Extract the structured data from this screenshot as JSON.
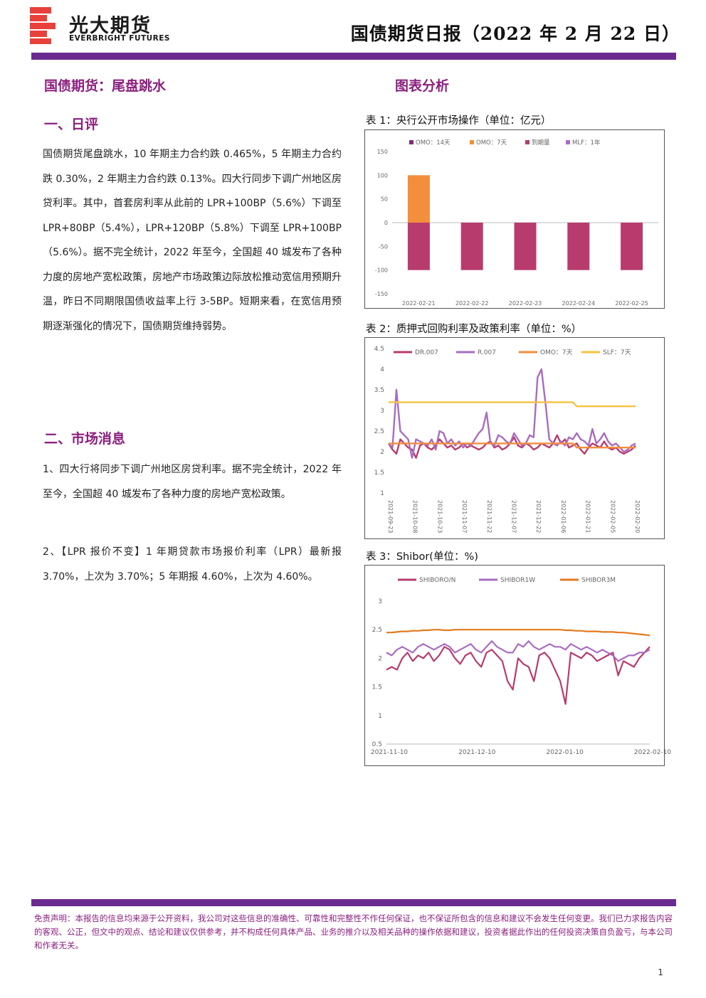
{
  "header": {
    "logo_cn": "光大期货",
    "logo_en": "EVERBRIGHT FUTURES",
    "report_title": "国债期货日报（2022 年 2 月 22 日）"
  },
  "main": {
    "title": "国债期货：尾盘跳水",
    "section1_title": "一、日评",
    "section1_text": "国债期货尾盘跳水，10 年期主力合约跌 0.465%，5 年期主力合约跌 0.30%，2 年期主力合约跌 0.13%。四大行同步下调广州地区房贷利率。其中，首套房利率从此前的 LPR+100BP（5.6%）下调至 LPR+80BP（5.4%），LPR+120BP（5.8%）下调至 LPR+100BP（5.6%）。据不完全统计，2022 年至今，全国超 40 城发布了各种力度的房地产宽松政策，房地产市场政策边际放松推动宽信用预期升温，昨日不同期限国债收益率上行 3-5BP。短期来看，在宽信用预期逐渐强化的情况下，国债期货维持弱势。",
    "section2_title": "二、市场消息",
    "news1": "1、四大行将同步下调广州地区房贷利率。据不完全统计，2022 年至今，全国超 40 城发布了各种力度的房地产宽松政策。",
    "news2": "2、【LPR 报价不变】1 年期贷款市场报价利率（LPR）最新报 3.70%，上次为 3.70%；5 年期报 4.60%，上次为 4.60%。"
  },
  "charts_title": "图表分析",
  "chart_data": [
    {
      "label": "表 1：央行公开市场操作（单位：亿元）",
      "type": "bar",
      "categories": [
        "2022-02-21",
        "2022-02-22",
        "2022-02-23",
        "2022-02-24",
        "2022-02-25"
      ],
      "series": [
        {
          "name": "OMO：14天",
          "color": "#7b2d7e",
          "values": [
            0,
            0,
            0,
            0,
            0
          ]
        },
        {
          "name": "OMO：7天",
          "color": "#f28e3c",
          "values": [
            100,
            0,
            0,
            0,
            0
          ]
        },
        {
          "name": "到期量",
          "color": "#b83b6e",
          "values": [
            -100,
            -100,
            -100,
            -100,
            -100
          ]
        },
        {
          "name": "MLF：1年",
          "color": "#a86cc1",
          "values": [
            0,
            0,
            0,
            0,
            0
          ]
        }
      ],
      "ylim": [
        -150,
        150
      ],
      "yticks": [
        "150",
        "100",
        "50",
        "0",
        "-50",
        "-100",
        "-150"
      ]
    },
    {
      "label": "表 2：质押式回购利率及政策利率（单位：%）",
      "type": "line",
      "xticks": [
        "2021-09-23",
        "2021-10-08",
        "2021-10-23",
        "2021-11-07",
        "2021-11-22",
        "2021-12-07",
        "2021-12-22",
        "2022-01-06",
        "2022-01-21",
        "2022-02-05",
        "2022-02-20"
      ],
      "yticks": [
        "4.5",
        "4",
        "3.5",
        "3",
        "2.5",
        "2",
        "1.5",
        "1"
      ],
      "ylim": [
        1,
        4.5
      ],
      "series": [
        {
          "name": "DR.007",
          "color": "#b83b6e",
          "values": [
            2.2,
            2.05,
            1.95,
            2.3,
            2.2,
            2.1,
            2.05,
            1.85,
            2.15,
            2.2,
            2.1,
            2.05,
            2.15,
            2.3,
            2.2,
            2.1,
            2.15,
            2.05,
            2.1,
            2.2,
            2.1,
            2.15,
            2.1,
            2.05,
            2.1,
            2.2,
            2.25,
            2.1,
            2.15,
            2.05,
            2.1,
            2.2,
            2.35,
            2.15,
            2.1,
            2.2,
            2.15,
            2.05,
            2.1,
            2.2,
            2.15,
            2.1,
            2.2,
            2.4,
            2.2,
            2.3,
            2.1,
            2.15,
            2.2,
            2.05,
            1.95,
            2.1,
            2.2,
            2.15,
            2.1,
            2.25,
            2.1,
            2.05,
            2.1,
            2.0,
            1.95,
            2.0,
            2.05,
            2.15
          ]
        },
        {
          "name": "R.007",
          "color": "#a86cc1",
          "values": [
            2.2,
            2.1,
            3.5,
            2.5,
            2.4,
            2.3,
            1.85,
            2.3,
            2.25,
            2.2,
            2.15,
            2.3,
            2.05,
            2.5,
            2.45,
            2.2,
            2.3,
            2.15,
            2.25,
            2.1,
            2.2,
            2.15,
            2.3,
            2.45,
            2.55,
            2.95,
            2.2,
            2.15,
            2.4,
            2.35,
            2.25,
            2.2,
            2.45,
            2.3,
            2.15,
            2.2,
            2.4,
            2.35,
            3.8,
            4.0,
            3.2,
            2.3,
            2.2,
            2.15,
            2.25,
            2.15,
            2.35,
            2.3,
            2.45,
            2.3,
            2.25,
            2.15,
            2.55,
            2.2,
            2.3,
            2.45,
            2.25,
            2.15,
            2.2,
            2.1,
            2.0,
            2.05,
            2.15,
            2.2
          ]
        },
        {
          "name": "OMO：7天",
          "color": "#f28e3c",
          "values": [
            2.2,
            2.2,
            2.2,
            2.2,
            2.2,
            2.2,
            2.2,
            2.2,
            2.2,
            2.2,
            2.2,
            2.2,
            2.2,
            2.2,
            2.2,
            2.2,
            2.2,
            2.2,
            2.2,
            2.2,
            2.2,
            2.2,
            2.2,
            2.2,
            2.2,
            2.2,
            2.2,
            2.2,
            2.2,
            2.2,
            2.2,
            2.2,
            2.2,
            2.2,
            2.2,
            2.2,
            2.2,
            2.2,
            2.2,
            2.2,
            2.2,
            2.2,
            2.2,
            2.2,
            2.2,
            2.2,
            2.2,
            2.2,
            2.1,
            2.1,
            2.1,
            2.1,
            2.1,
            2.1,
            2.1,
            2.1,
            2.1,
            2.1,
            2.1,
            2.1,
            2.1,
            2.1,
            2.1,
            2.1
          ]
        },
        {
          "name": "SLF：7天",
          "color": "#f5c242",
          "values": [
            3.2,
            3.2,
            3.2,
            3.2,
            3.2,
            3.2,
            3.2,
            3.2,
            3.2,
            3.2,
            3.2,
            3.2,
            3.2,
            3.2,
            3.2,
            3.2,
            3.2,
            3.2,
            3.2,
            3.2,
            3.2,
            3.2,
            3.2,
            3.2,
            3.2,
            3.2,
            3.2,
            3.2,
            3.2,
            3.2,
            3.2,
            3.2,
            3.2,
            3.2,
            3.2,
            3.2,
            3.2,
            3.2,
            3.2,
            3.2,
            3.2,
            3.2,
            3.2,
            3.2,
            3.2,
            3.2,
            3.2,
            3.2,
            3.1,
            3.1,
            3.1,
            3.1,
            3.1,
            3.1,
            3.1,
            3.1,
            3.1,
            3.1,
            3.1,
            3.1,
            3.1,
            3.1,
            3.1,
            3.1
          ]
        }
      ]
    },
    {
      "label": "表 3：Shibor(单位：%)",
      "type": "line",
      "xticks": [
        "2021-11-10",
        "2021-12-10",
        "2022-01-10",
        "2022-02-10"
      ],
      "yticks": [
        "3",
        "2.5",
        "2",
        "1.5",
        "1",
        "0.5"
      ],
      "ylim": [
        0.5,
        3
      ],
      "series": [
        {
          "name": "SHIBORO/N",
          "color": "#b83b6e",
          "values": [
            1.8,
            1.85,
            1.8,
            2.0,
            2.1,
            1.95,
            2.05,
            2.0,
            2.1,
            1.95,
            2.05,
            2.2,
            2.15,
            2.0,
            1.9,
            2.05,
            2.1,
            1.95,
            1.85,
            2.1,
            2.15,
            2.05,
            1.95,
            1.6,
            1.45,
            2.0,
            1.9,
            1.85,
            1.6,
            2.05,
            2.1,
            2.0,
            1.8,
            1.6,
            1.2,
            2.1,
            2.05,
            2.0,
            2.1,
            2.05,
            1.95,
            2.0,
            2.05,
            2.1,
            1.7,
            1.95,
            1.9,
            1.85,
            2.0,
            2.1,
            2.2
          ]
        },
        {
          "name": "SHIBOR1W",
          "color": "#a86cc1",
          "values": [
            2.1,
            2.05,
            2.15,
            2.2,
            2.15,
            2.1,
            2.2,
            2.25,
            2.2,
            2.15,
            2.2,
            2.25,
            2.2,
            2.1,
            2.15,
            2.2,
            2.25,
            2.15,
            2.1,
            2.2,
            2.3,
            2.2,
            2.15,
            2.1,
            2.1,
            2.25,
            2.2,
            2.3,
            2.2,
            2.15,
            2.2,
            2.25,
            2.2,
            2.2,
            2.15,
            2.25,
            2.2,
            2.15,
            2.2,
            2.15,
            2.1,
            2.15,
            2.1,
            2.05,
            1.95,
            2.0,
            2.05,
            2.05,
            2.1,
            2.1,
            2.15
          ]
        },
        {
          "name": "SHIBOR3M",
          "color": "#e37a1f",
          "values": [
            2.45,
            2.45,
            2.46,
            2.47,
            2.47,
            2.48,
            2.48,
            2.49,
            2.49,
            2.5,
            2.5,
            2.49,
            2.49,
            2.5,
            2.5,
            2.5,
            2.5,
            2.5,
            2.5,
            2.5,
            2.5,
            2.5,
            2.5,
            2.5,
            2.5,
            2.5,
            2.5,
            2.5,
            2.5,
            2.5,
            2.5,
            2.5,
            2.5,
            2.5,
            2.49,
            2.49,
            2.48,
            2.48,
            2.47,
            2.47,
            2.47,
            2.46,
            2.46,
            2.46,
            2.45,
            2.45,
            2.44,
            2.43,
            2.42,
            2.41,
            2.4
          ]
        }
      ]
    }
  ],
  "footer": {
    "disclaimer": "免责声明：本报告的信息均来源于公开资料，我公司对这些信息的准确性、可靠性和完整性不作任何保证，也不保证所包含的信息和建议不会发生任何变更。我们已力求报告内容的客观、公正，但文中的观点、结论和建议仅供参考，并不构成任何具体产品、业务的推介以及相关品种的操作依据和建议，投资者据此作出的任何投资决策自负盈亏，与本公司和作者无关。",
    "page_number": "1"
  }
}
